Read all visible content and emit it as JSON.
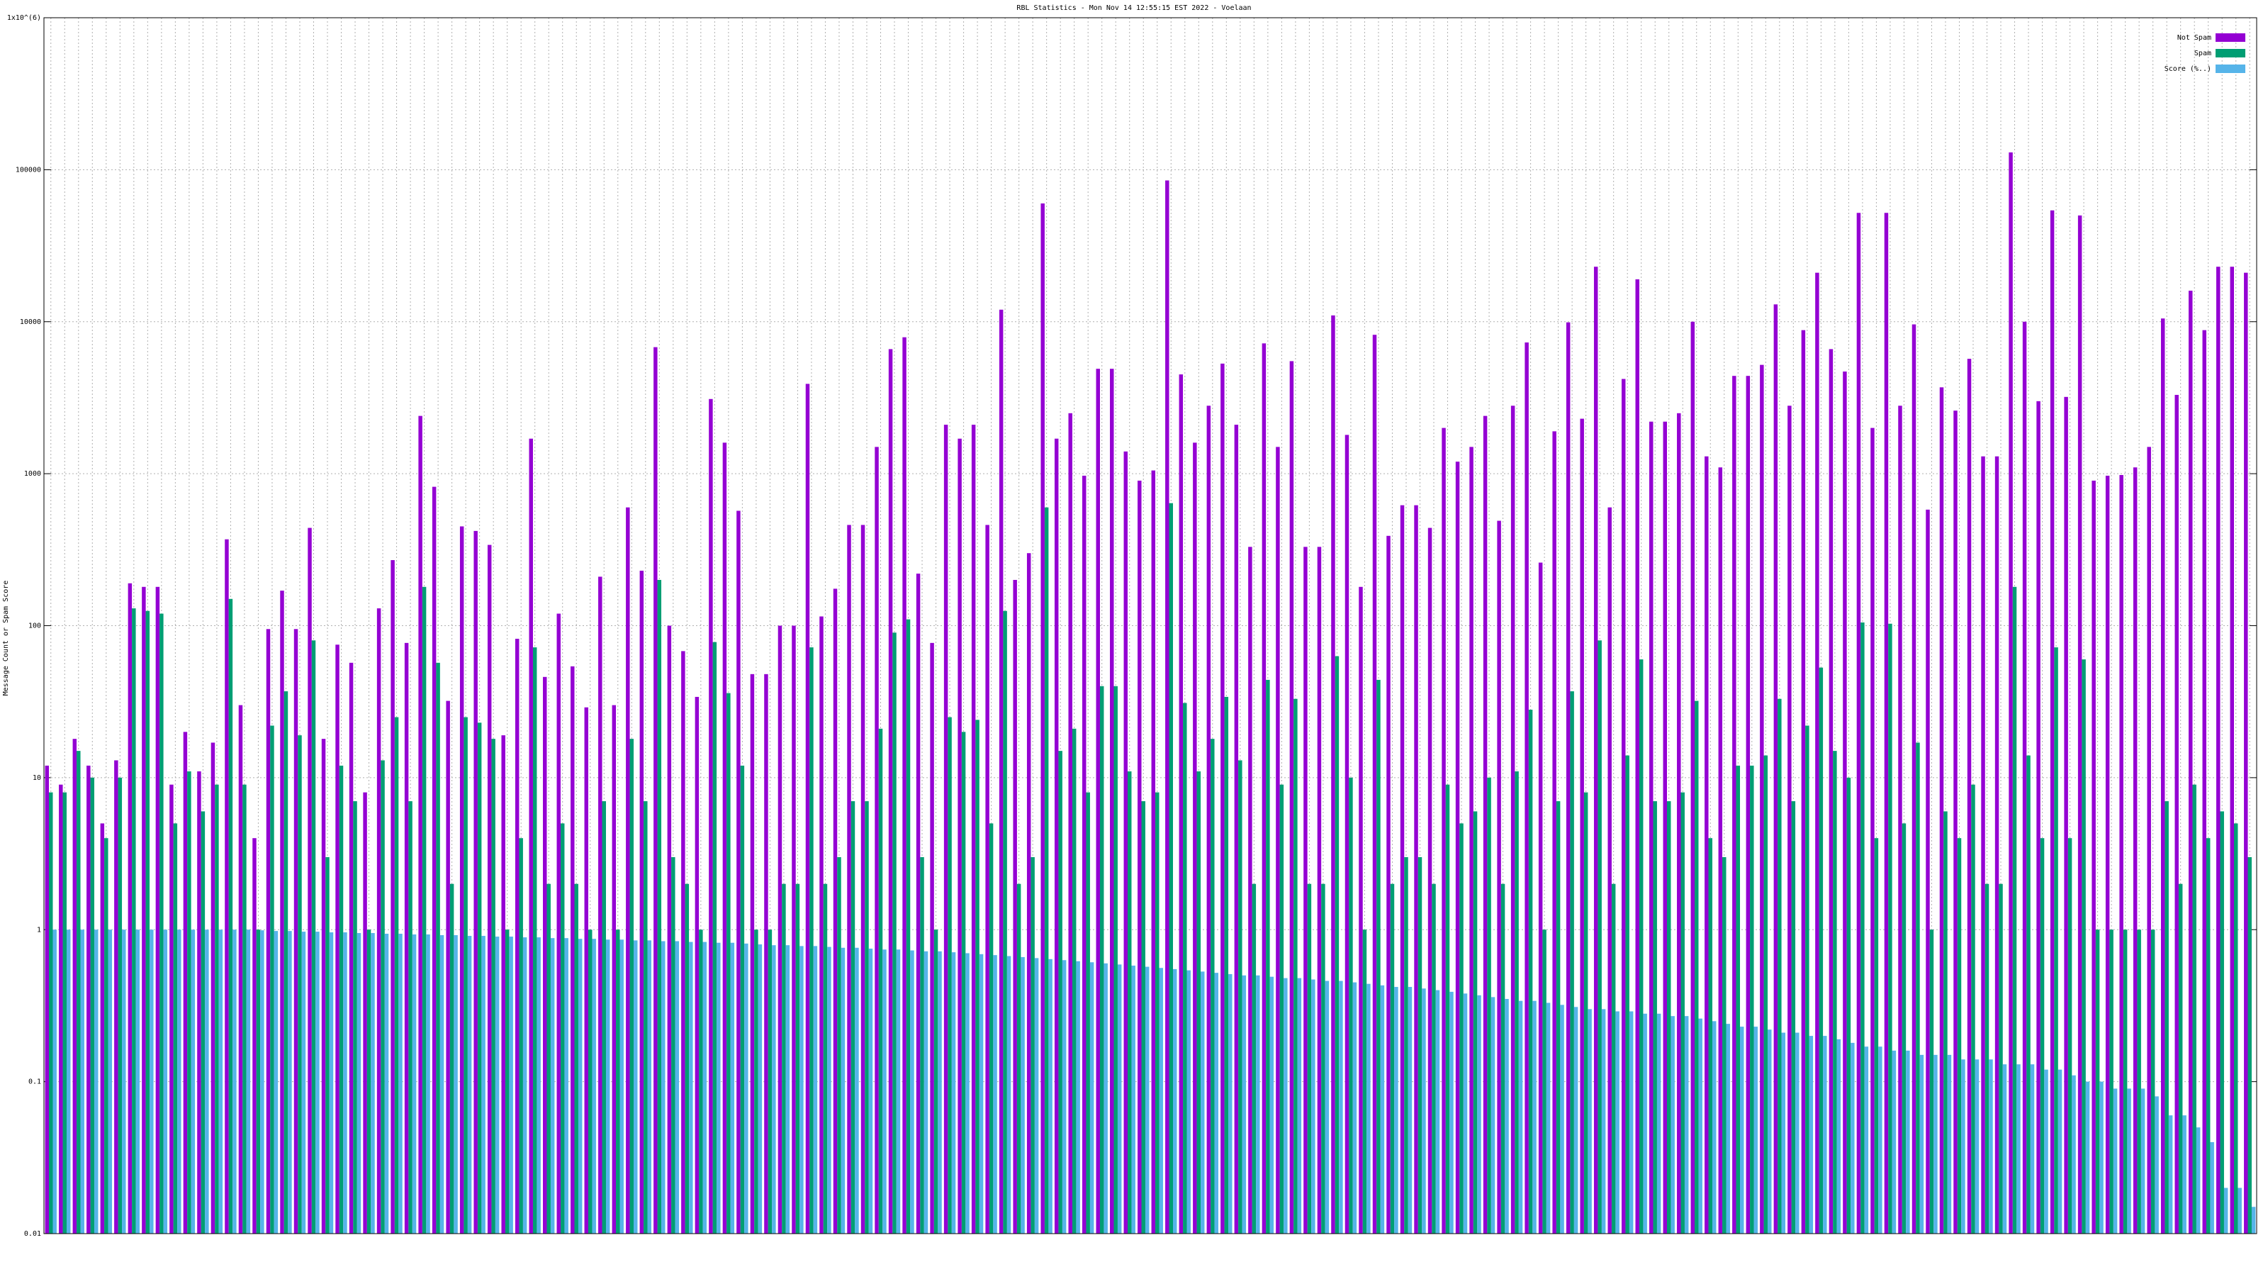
{
  "chart_data": {
    "type": "bar",
    "title": "RBL Statistics - Mon Nov 14 12:55:15 EST 2022 - Voelaan",
    "y_label": "Message Count or Spam Score",
    "ylog": true,
    "grid": true,
    "legend": "top-right",
    "ylim": [
      0.01,
      1000000
    ],
    "yticks": [
      0.01,
      0.1,
      1,
      10,
      100,
      1000,
      10000,
      100000,
      {
        "value": 1000000,
        "label": "1x10^(6)"
      }
    ],
    "categories": [
      null,
      null,
      null,
      null,
      null,
      null,
      null,
      null,
      null,
      null,
      null,
      null,
      null,
      null,
      null,
      null,
      null,
      null,
      null,
      null,
      null,
      null,
      null,
      null,
      null,
      null,
      null,
      null,
      null,
      null,
      null,
      null,
      null,
      null,
      null,
      null,
      null,
      null,
      null,
      null,
      null,
      null,
      null,
      null,
      null,
      null,
      null,
      null,
      null,
      null,
      null,
      null,
      null,
      null,
      null,
      null,
      null,
      null,
      null,
      null,
      null,
      null,
      null,
      null,
      null,
      null,
      null,
      null,
      null,
      null,
      null,
      null,
      null,
      null,
      null,
      null,
      null,
      null,
      null,
      null,
      null,
      null,
      null,
      null,
      null,
      null,
      null,
      null,
      null,
      null,
      null,
      null,
      null,
      null,
      null,
      null,
      null,
      null,
      null,
      null,
      null,
      null,
      null,
      null,
      null,
      null,
      null,
      null,
      null,
      null,
      null,
      null,
      null,
      null,
      null,
      null,
      null,
      null,
      null,
      null,
      null,
      null,
      null,
      null,
      null,
      null,
      null,
      null,
      null,
      null,
      null,
      null,
      null,
      null,
      null,
      null,
      null,
      null,
      null,
      null,
      null,
      null,
      null,
      null,
      null,
      null,
      null,
      null,
      null,
      null,
      null,
      null,
      null,
      null,
      null,
      null,
      null,
      null,
      null,
      null
    ],
    "series": [
      {
        "name": "Not Spam",
        "color": "#9400d3",
        "values": [
          12,
          9,
          18,
          12,
          5,
          13,
          190,
          180,
          180,
          9,
          20,
          11,
          17,
          370,
          30,
          4,
          95,
          170,
          95,
          440,
          18,
          75,
          57,
          8,
          130,
          270,
          77,
          2400,
          820,
          32,
          450,
          420,
          340,
          19,
          82,
          1700,
          46,
          120,
          54,
          29,
          210,
          30,
          600,
          230,
          6800,
          100,
          68,
          34,
          3100,
          1600,
          570,
          48,
          48,
          100,
          100,
          3900,
          115,
          175,
          460,
          460,
          1500,
          6600,
          7900,
          220,
          77,
          2100,
          1700,
          2100,
          460,
          12000,
          200,
          300,
          60000,
          1700,
          2500,
          970,
          4900,
          4900,
          1400,
          900,
          1050,
          85000,
          4500,
          1600,
          2800,
          5300,
          2100,
          330,
          7200,
          1500,
          5500,
          330,
          330,
          11000,
          1800,
          180,
          8200,
          390,
          620,
          620,
          440,
          2000,
          1200,
          1500,
          2400,
          490,
          2800,
          7300,
          260,
          1900,
          9900,
          2300,
          23000,
          600,
          4200,
          19000,
          2200,
          2200,
          2500,
          10000,
          1300,
          1100,
          4400,
          4400,
          5200,
          13000,
          2800,
          8800,
          21000,
          6600,
          4700,
          52000,
          2000,
          52000,
          2800,
          9600,
          580,
          3700,
          2600,
          5700,
          1300,
          1300,
          130000,
          10000,
          3000,
          54000,
          3200,
          50000,
          900,
          970,
          980,
          1100,
          1500,
          10500,
          3300,
          16000,
          8800,
          23000,
          23000,
          21000
        ]
      },
      {
        "name": "Spam",
        "color": "#009e73",
        "values": [
          8,
          8,
          15,
          10,
          4,
          10,
          130,
          125,
          120,
          5,
          11,
          6,
          9,
          150,
          9,
          1,
          22,
          37,
          19,
          80,
          3,
          12,
          7,
          1,
          13,
          25,
          7,
          180,
          57,
          2,
          25,
          23,
          18,
          1,
          4,
          72,
          2,
          5,
          2,
          1,
          7,
          1,
          18,
          7,
          200,
          3,
          2,
          1,
          78,
          36,
          12,
          1,
          1,
          2,
          2,
          72,
          2,
          3,
          7,
          7,
          21,
          90,
          110,
          3,
          1,
          25,
          20,
          24,
          5,
          125,
          2,
          3,
          600,
          15,
          21,
          8,
          40,
          40,
          11,
          7,
          8,
          640,
          31,
          11,
          18,
          34,
          13,
          2,
          44,
          9,
          33,
          2,
          2,
          63,
          10,
          1,
          44,
          2,
          3,
          3,
          2,
          9,
          5,
          6,
          10,
          2,
          11,
          28,
          1,
          7,
          37,
          8,
          80,
          2,
          14,
          60,
          7,
          7,
          8,
          32,
          4,
          3,
          12,
          12,
          14,
          33,
          7,
          22,
          53,
          15,
          10,
          105,
          4,
          103,
          5,
          17,
          1,
          6,
          4,
          9,
          2,
          2,
          180,
          14,
          4,
          72,
          4,
          60,
          1,
          1,
          1,
          1,
          1,
          7,
          2,
          9,
          4,
          6,
          5,
          3
        ]
      },
      {
        "name": "Score (%..)",
        "color": "#56b4e9",
        "values": [
          1,
          1,
          1,
          1,
          1,
          1,
          1,
          1,
          1,
          1,
          1,
          1,
          1,
          1,
          1,
          0.99,
          0.98,
          0.98,
          0.97,
          0.97,
          0.96,
          0.96,
          0.95,
          0.95,
          0.94,
          0.94,
          0.93,
          0.93,
          0.92,
          0.92,
          0.91,
          0.91,
          0.9,
          0.9,
          0.89,
          0.89,
          0.88,
          0.88,
          0.87,
          0.87,
          0.86,
          0.86,
          0.85,
          0.85,
          0.84,
          0.84,
          0.83,
          0.83,
          0.82,
          0.82,
          0.81,
          0.8,
          0.79,
          0.79,
          0.78,
          0.78,
          0.77,
          0.76,
          0.76,
          0.75,
          0.74,
          0.74,
          0.73,
          0.72,
          0.72,
          0.71,
          0.7,
          0.69,
          0.68,
          0.67,
          0.66,
          0.65,
          0.64,
          0.63,
          0.62,
          0.61,
          0.6,
          0.59,
          0.58,
          0.57,
          0.56,
          0.55,
          0.54,
          0.53,
          0.52,
          0.51,
          0.5,
          0.5,
          0.49,
          0.48,
          0.48,
          0.47,
          0.46,
          0.46,
          0.45,
          0.44,
          0.43,
          0.42,
          0.42,
          0.41,
          0.4,
          0.39,
          0.38,
          0.37,
          0.36,
          0.35,
          0.34,
          0.34,
          0.33,
          0.32,
          0.31,
          0.3,
          0.3,
          0.29,
          0.29,
          0.28,
          0.28,
          0.27,
          0.27,
          0.26,
          0.25,
          0.24,
          0.23,
          0.23,
          0.22,
          0.21,
          0.21,
          0.2,
          0.2,
          0.19,
          0.18,
          0.17,
          0.17,
          0.16,
          0.16,
          0.15,
          0.15,
          0.15,
          0.14,
          0.14,
          0.14,
          0.13,
          0.13,
          0.13,
          0.12,
          0.12,
          0.11,
          0.1,
          0.1,
          0.09,
          0.09,
          0.09,
          0.08,
          0.06,
          0.06,
          0.05,
          0.04,
          0.02,
          0.02,
          0.015
        ]
      }
    ]
  }
}
